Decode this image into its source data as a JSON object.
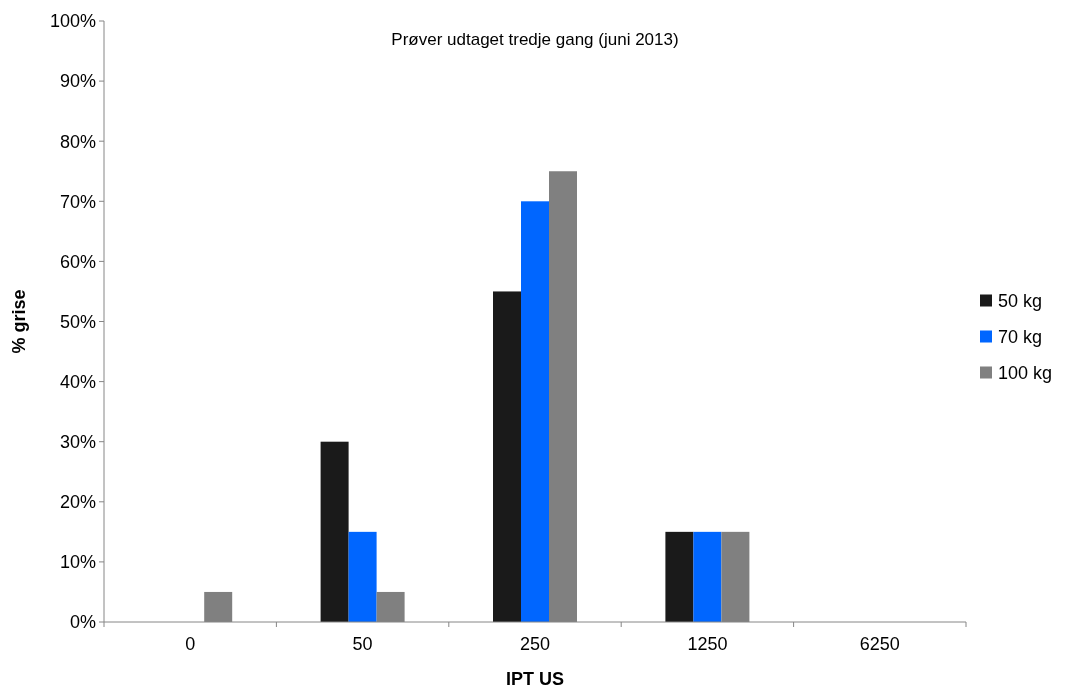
{
  "chart_data": {
    "type": "bar",
    "title": "Prøver udtaget tredje gang (juni  2013)",
    "xlabel": "IPT US",
    "ylabel": "% grise",
    "categories": [
      "0",
      "50",
      "250",
      "1250",
      "6250"
    ],
    "series": [
      {
        "name": "50 kg",
        "color": "#1a1a1a",
        "values": [
          0,
          30,
          55,
          15,
          0
        ]
      },
      {
        "name": "70 kg",
        "color": "#0066ff",
        "values": [
          0,
          15,
          70,
          15,
          0
        ]
      },
      {
        "name": "100 kg",
        "color": "#808080",
        "values": [
          5,
          5,
          75,
          15,
          0
        ]
      }
    ],
    "ylim": [
      0,
      100
    ],
    "yticks": [
      {
        "value": 0,
        "label": "0%"
      },
      {
        "value": 10,
        "label": "10%"
      },
      {
        "value": 20,
        "label": "20%"
      },
      {
        "value": 30,
        "label": "30%"
      },
      {
        "value": 40,
        "label": "40%"
      },
      {
        "value": 50,
        "label": "50%"
      },
      {
        "value": 60,
        "label": "60%"
      },
      {
        "value": 70,
        "label": "70%"
      },
      {
        "value": 80,
        "label": "80%"
      },
      {
        "value": 90,
        "label": "90%"
      },
      {
        "value": 100,
        "label": "100%"
      }
    ],
    "grid": false,
    "legend": "right"
  }
}
